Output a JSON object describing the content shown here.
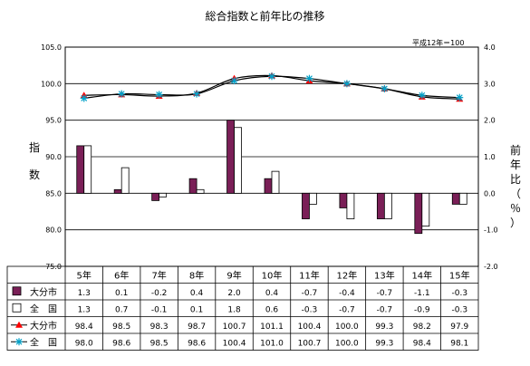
{
  "title": "総合指数と前年比の推移",
  "note": "平成12年＝100",
  "chart_data": {
    "type": "bar+line",
    "title": "総合指数と前年比の推移",
    "categories": [
      "5年",
      "6年",
      "7年",
      "8年",
      "9年",
      "10年",
      "11年",
      "12年",
      "13年",
      "14年",
      "15年"
    ],
    "left_axis": {
      "label_chars": [
        "指",
        "数"
      ],
      "ylim": [
        75.0,
        105.0
      ],
      "ticks": [
        "105.0",
        "100.0",
        "95.0",
        "90.0",
        "85.0",
        "80.0",
        "75.0"
      ]
    },
    "right_axis": {
      "label_chars": [
        "前",
        "年",
        "比",
        "（",
        "％",
        "）"
      ],
      "ylim": [
        -2.0,
        4.0
      ],
      "ticks": [
        "4.0",
        "3.0",
        "2.0",
        "1.0",
        "0.0",
        "-1.0",
        "-2.0"
      ]
    },
    "grid": true,
    "series": [
      {
        "name": "大分市",
        "kind": "bar",
        "axis": "right",
        "color": "#7a1f57",
        "values": [
          "1.3",
          "0.1",
          "-0.2",
          "0.4",
          "2.0",
          "0.4",
          "-0.7",
          "-0.4",
          "-0.7",
          "-1.1",
          "-0.3"
        ]
      },
      {
        "name": "全　国",
        "kind": "bar",
        "axis": "right",
        "color": "#ffffff",
        "values": [
          "1.3",
          "0.7",
          "-0.1",
          "0.1",
          "1.8",
          "0.6",
          "-0.3",
          "-0.7",
          "-0.7",
          "-0.9",
          "-0.3"
        ]
      },
      {
        "name": "大分市",
        "kind": "line",
        "axis": "left",
        "color": "#ff0000",
        "marker": "triangle",
        "values": [
          "98.4",
          "98.5",
          "98.3",
          "98.7",
          "100.7",
          "101.1",
          "100.4",
          "100.0",
          "99.3",
          "98.2",
          "97.9"
        ]
      },
      {
        "name": "全　国",
        "kind": "line",
        "axis": "left",
        "color": "#00a0c8",
        "marker": "asterisk",
        "values": [
          "98.0",
          "98.6",
          "98.5",
          "98.6",
          "100.4",
          "101.0",
          "100.7",
          "100.0",
          "99.3",
          "98.4",
          "98.1"
        ]
      }
    ]
  }
}
